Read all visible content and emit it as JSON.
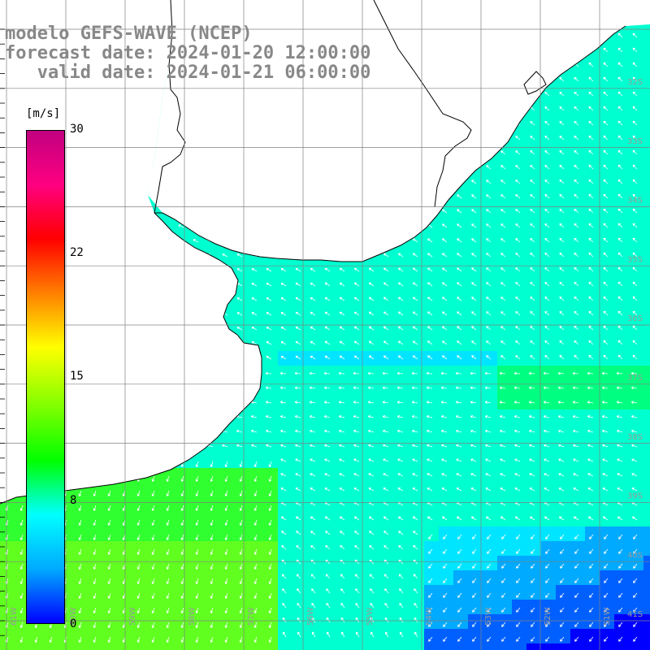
{
  "title": {
    "line1": "modelo GEFS-WAVE (NCEP)",
    "line2": "forecast date: 2024-01-20 12:00:00",
    "line3": "   valid date: 2024-01-21 06:00:00"
  },
  "colorbar": {
    "unit": "[m/s]",
    "min": 0,
    "max": 30,
    "tick_labels": [
      "30",
      "22",
      "15",
      "8",
      "0"
    ],
    "colors": [
      "#0000ff",
      "#00aaff",
      "#00ffff",
      "#00ff00",
      "#7fff00",
      "#ffff00",
      "#ff8000",
      "#ff0000",
      "#ff0080",
      "#c00080"
    ]
  },
  "map": {
    "latitude_labels": [
      "32S",
      "33S",
      "34S",
      "35S",
      "36S",
      "37S",
      "38S",
      "39S",
      "40S",
      "41S"
    ],
    "longitude_labels": [
      "61W",
      "60W",
      "59W",
      "58W",
      "57W",
      "56W",
      "55W",
      "54W",
      "53W",
      "52W",
      "51W"
    ],
    "colors": {
      "land": "#ffffff",
      "coast": "#000000",
      "grid": "#808080",
      "arrow": "#ffffff"
    }
  }
}
